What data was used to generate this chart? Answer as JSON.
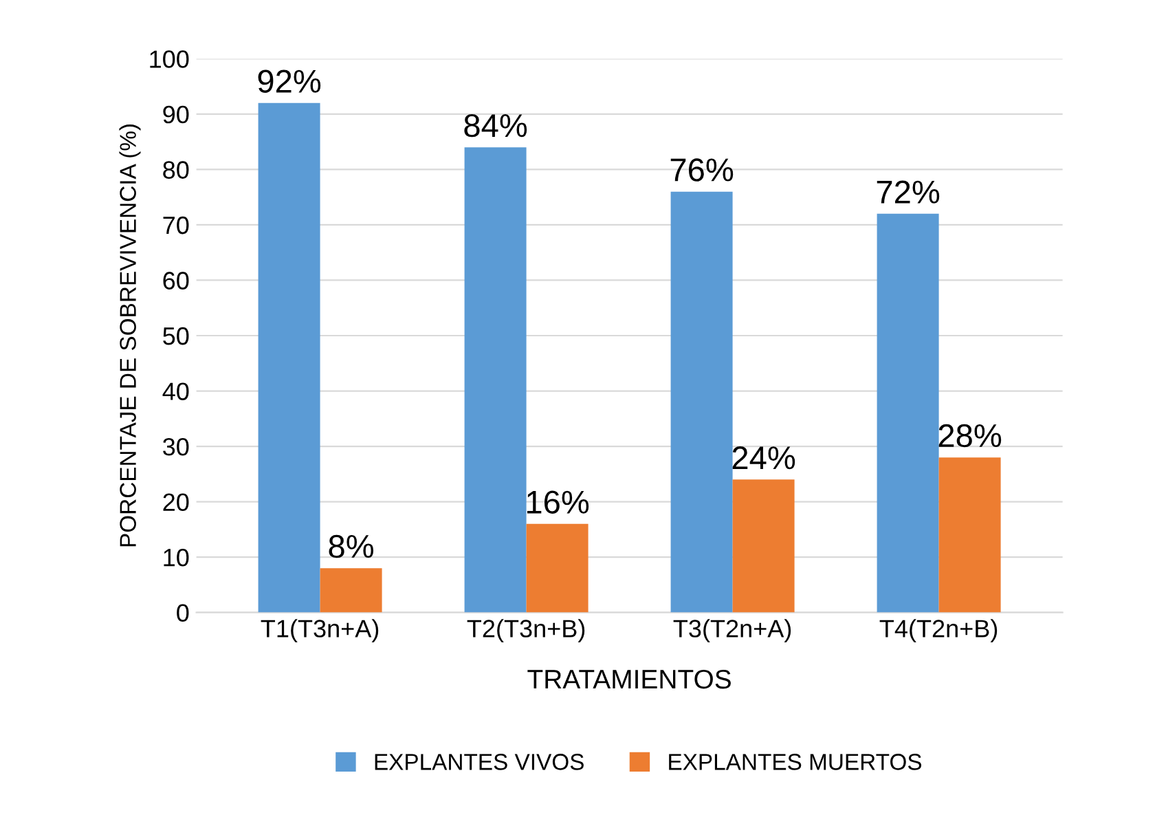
{
  "chart_data": {
    "type": "bar",
    "xlabel": "TRATAMIENTOS",
    "ylabel": "PORCENTAJE DE SOBREVIVENCIA (%)",
    "categories": [
      "T1(T3n+A)",
      "T2(T3n+B)",
      "T3(T2n+A)",
      "T4(T2n+B)"
    ],
    "series": [
      {
        "name": "EXPLANTES VIVOS",
        "color": "#5b9bd5",
        "values": [
          92,
          84,
          76,
          72
        ],
        "value_labels": [
          "92%",
          "84%",
          "76%",
          "72%"
        ]
      },
      {
        "name": "EXPLANTES MUERTOS",
        "color": "#ed7d31",
        "values": [
          8,
          16,
          24,
          28
        ],
        "value_labels": [
          "8%",
          "16%",
          "24%",
          "28%"
        ]
      }
    ],
    "ylim": [
      0,
      100
    ],
    "yticks": [
      0,
      10,
      20,
      30,
      40,
      50,
      60,
      70,
      80,
      90,
      100
    ],
    "grid": "y",
    "legend": "bottom"
  }
}
